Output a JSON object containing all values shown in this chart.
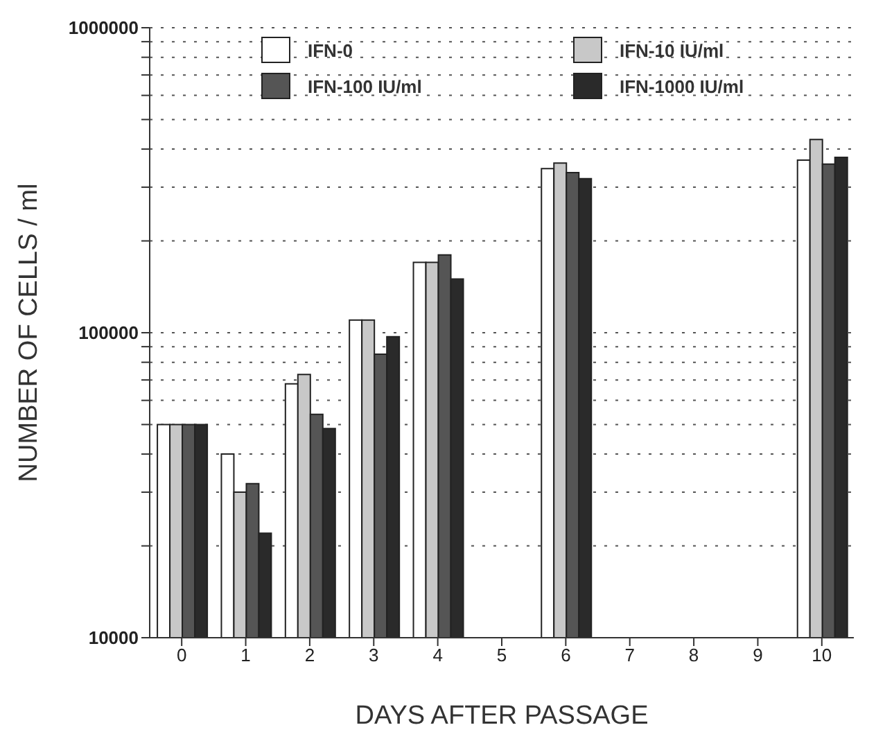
{
  "chart_data": {
    "type": "bar",
    "xlabel": "DAYS AFTER PASSAGE",
    "ylabel": "NUMBER OF CELLS / ml",
    "categories": [
      "0",
      "1",
      "2",
      "3",
      "4",
      "5",
      "6",
      "7",
      "8",
      "9",
      "10"
    ],
    "series": [
      {
        "name": "IFN-0",
        "color": "#ffffff",
        "values": [
          50000,
          40000,
          68000,
          110000,
          170000,
          null,
          345000,
          null,
          null,
          null,
          368000
        ]
      },
      {
        "name": "IFN-10 IU/ml",
        "color": "#c8c8c8",
        "values": [
          50000,
          30000,
          73000,
          110000,
          170000,
          null,
          360000,
          null,
          null,
          null,
          430000
        ]
      },
      {
        "name": "IFN-100 IU/ml",
        "color": "#555555",
        "values": [
          50000,
          32000,
          54000,
          85000,
          180000,
          null,
          335000,
          null,
          null,
          null,
          357000
        ]
      },
      {
        "name": "IFN-1000 IU/ml",
        "color": "#2a2a2a",
        "values": [
          50000,
          22000,
          48500,
          97000,
          150000,
          null,
          320000,
          null,
          null,
          null,
          376000
        ]
      }
    ],
    "log": true,
    "ylim": [
      10000,
      1000000
    ],
    "yticks": [
      10000,
      {
        "value": 20000,
        "label": null
      },
      {
        "value": 30000,
        "label": null
      },
      {
        "value": 40000,
        "label": null
      },
      {
        "value": 50000,
        "label": null
      },
      {
        "value": 60000,
        "label": null
      },
      {
        "value": 70000,
        "label": null
      },
      {
        "value": 80000,
        "label": null
      },
      {
        "value": 90000,
        "label": null
      },
      100000,
      {
        "value": 200000,
        "label": null
      },
      {
        "value": 300000,
        "label": null
      },
      {
        "value": 400000,
        "label": null
      },
      {
        "value": 500000,
        "label": null
      },
      {
        "value": 600000,
        "label": null
      },
      {
        "value": 700000,
        "label": null
      },
      {
        "value": 800000,
        "label": null
      },
      {
        "value": 900000,
        "label": null
      },
      1000000
    ],
    "grid": "y",
    "legend": "top"
  }
}
